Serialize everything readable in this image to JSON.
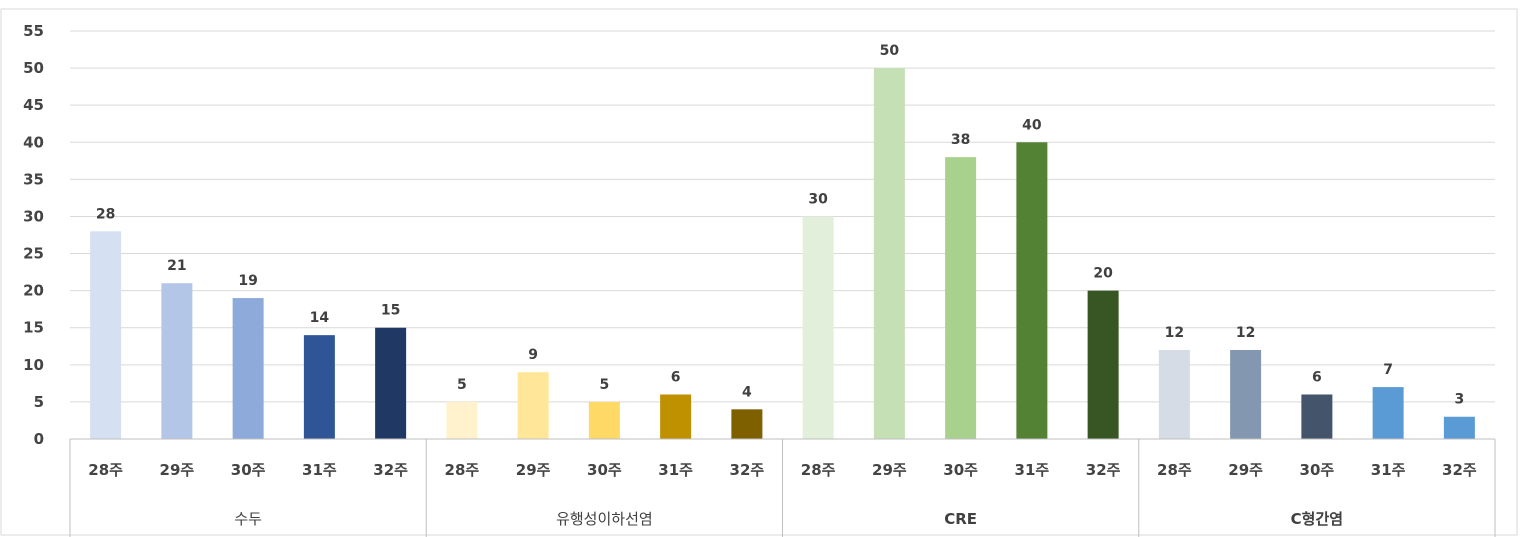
{
  "chart_data": {
    "type": "bar",
    "y_ticks": [
      0,
      5,
      10,
      15,
      20,
      25,
      30,
      35,
      40,
      45,
      50,
      55
    ],
    "ylim": [
      0,
      55
    ],
    "grid": true,
    "groups": [
      {
        "name": "수두",
        "bold": false,
        "categories": [
          "28주",
          "29주",
          "30주",
          "31주",
          "32주"
        ],
        "values": [
          28,
          21,
          19,
          14,
          15
        ],
        "colors": [
          "#d6e0f3",
          "#b4c6e7",
          "#8eaadb",
          "#2f5597",
          "#1f3864"
        ]
      },
      {
        "name": "유행성이하선염",
        "bold": false,
        "categories": [
          "28주",
          "29주",
          "30주",
          "31주",
          "32주"
        ],
        "values": [
          5,
          9,
          5,
          6,
          4
        ],
        "colors": [
          "#fff2cc",
          "#ffe699",
          "#ffd966",
          "#bf9000",
          "#7f6000"
        ]
      },
      {
        "name": "CRE",
        "bold": true,
        "categories": [
          "28주",
          "29주",
          "30주",
          "31주",
          "32주"
        ],
        "values": [
          30,
          50,
          38,
          40,
          20
        ],
        "colors": [
          "#e2efda",
          "#c5e0b4",
          "#a9d18e",
          "#548235",
          "#375623"
        ]
      },
      {
        "name": "C형간염",
        "bold": true,
        "categories": [
          "28주",
          "29주",
          "30주",
          "31주",
          "32주"
        ],
        "values": [
          12,
          12,
          6,
          7,
          3
        ],
        "colors": [
          "#d6dce5",
          "#8497b0",
          "#44546a",
          "#5b9bd5",
          "#5b9bd5"
        ]
      }
    ]
  }
}
